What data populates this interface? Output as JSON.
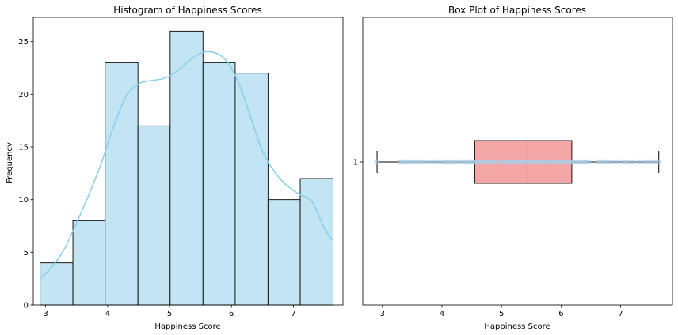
{
  "chart_data": [
    {
      "type": "histogram",
      "title": "Histogram of Happiness Scores",
      "xlabel": "Happiness Score",
      "ylabel": "Frequency",
      "xlim": [
        2.8,
        7.8
      ],
      "ylim": [
        0,
        27.3
      ],
      "xticks": [
        3,
        4,
        5,
        6,
        7
      ],
      "yticks": [
        0,
        5,
        10,
        15,
        20,
        25
      ],
      "bin_edges": [
        2.91,
        3.44,
        3.96,
        4.49,
        5.01,
        5.54,
        6.06,
        6.59,
        7.11,
        7.64
      ],
      "counts": [
        4,
        8,
        23,
        17,
        26,
        23,
        22,
        10,
        12
      ],
      "kde": {
        "x": [
          2.91,
          3.1,
          3.3,
          3.5,
          3.7,
          3.9,
          4.1,
          4.3,
          4.5,
          4.7,
          4.9,
          5.1,
          5.3,
          5.5,
          5.7,
          5.9,
          6.1,
          6.3,
          6.5,
          6.7,
          6.9,
          7.1,
          7.3,
          7.5,
          7.64
        ],
        "y": [
          2.5,
          3.6,
          5.3,
          7.8,
          10.5,
          13.5,
          17.0,
          19.8,
          21.0,
          21.3,
          21.5,
          22.1,
          23.1,
          23.9,
          24.0,
          23.3,
          21.3,
          18.0,
          14.6,
          12.6,
          11.3,
          10.5,
          9.8,
          7.3,
          6.1
        ]
      },
      "colors": {
        "bar": "#c2e4f3",
        "edge": "#000000",
        "kde": "#87ceeb"
      }
    },
    {
      "type": "boxplot",
      "title": "Box Plot of Happiness Scores",
      "xlabel": "Happiness Score",
      "xlim": [
        2.67,
        7.87
      ],
      "xticks": [
        3,
        4,
        5,
        6,
        7
      ],
      "ytick_labels": [
        "1"
      ],
      "box": {
        "whisker_low": 2.91,
        "q1": 4.55,
        "median": 5.44,
        "q3": 6.18,
        "whisker_high": 7.64
      },
      "points": [
        2.91,
        3.3,
        3.34,
        3.38,
        3.42,
        3.47,
        3.52,
        3.56,
        3.61,
        3.66,
        3.71,
        3.8,
        3.86,
        3.93,
        3.99,
        4.05,
        4.09,
        4.13,
        4.17,
        4.21,
        4.27,
        4.33,
        4.38,
        4.42,
        4.46,
        4.5,
        4.54,
        4.58,
        4.62,
        4.66,
        4.7,
        4.74,
        4.78,
        4.82,
        4.86,
        4.9,
        4.96,
        5.02,
        5.06,
        5.1,
        5.14,
        5.18,
        5.22,
        5.26,
        5.3,
        5.34,
        5.38,
        5.42,
        5.46,
        5.5,
        5.54,
        5.58,
        5.62,
        5.66,
        5.7,
        5.74,
        5.78,
        5.82,
        5.86,
        5.9,
        5.94,
        5.98,
        6.02,
        6.06,
        6.1,
        6.14,
        6.18,
        6.22,
        6.26,
        6.3,
        6.34,
        6.38,
        6.42,
        6.46,
        6.62,
        6.67,
        6.72,
        6.78,
        6.85,
        6.95,
        7.05,
        7.1,
        7.2,
        7.3,
        7.4,
        7.46,
        7.52,
        7.58,
        7.64
      ],
      "colors": {
        "box": "#f4a6a6",
        "median": "#ff7f0e",
        "points": "#a9cde6"
      }
    }
  ]
}
